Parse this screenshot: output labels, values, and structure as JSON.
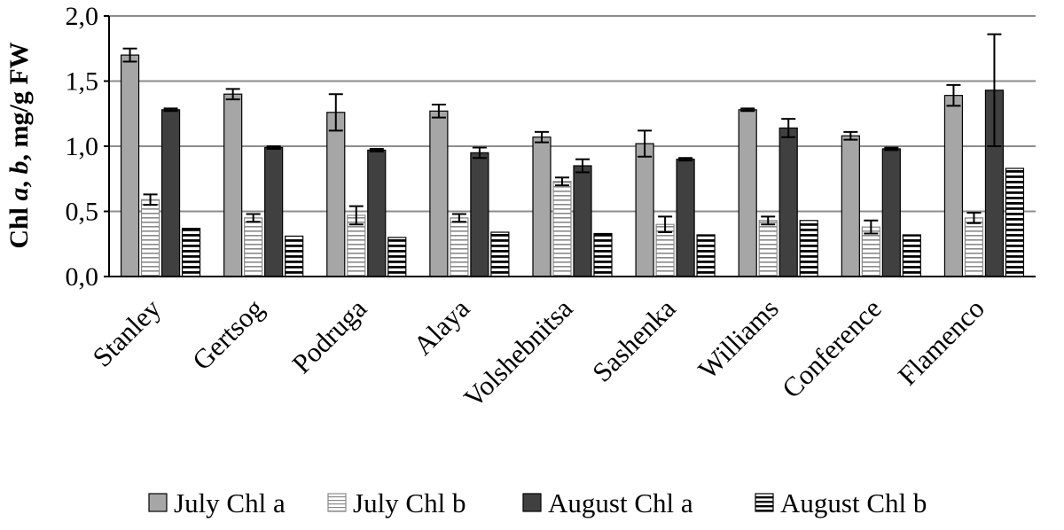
{
  "chart_data": {
    "type": "bar",
    "title": "",
    "xlabel": "",
    "ylabel": "Chl a, b, mg/g FW",
    "ylabel_parts": [
      "Chl ",
      "a",
      ", ",
      "b",
      ", mg/g FW"
    ],
    "ylim": [
      0,
      2.0
    ],
    "yticks": [
      "0,0",
      "0,5",
      "1,0",
      "1,5",
      "2,0"
    ],
    "ytick_values": [
      0,
      0.5,
      1.0,
      1.5,
      2.0
    ],
    "grid": true,
    "legend_position": "bottom",
    "categories": [
      "Stanley",
      "Gertsog",
      "Podruga",
      "Alaya",
      "Volshebnitsa",
      "Sashenka",
      "Williams",
      "Conference",
      "Flamenco"
    ],
    "series": [
      {
        "name": "July Chl a",
        "fill": "#a6a6a6",
        "pattern": "solid",
        "values": [
          1.7,
          1.4,
          1.26,
          1.27,
          1.07,
          1.02,
          1.28,
          1.08,
          1.39
        ],
        "errors": [
          0.05,
          0.04,
          0.14,
          0.05,
          0.04,
          0.1,
          0.01,
          0.03,
          0.08
        ]
      },
      {
        "name": "July Chl b",
        "fill": "#ffffff",
        "pattern": "thin-horizontal-lines",
        "values": [
          0.59,
          0.45,
          0.47,
          0.45,
          0.73,
          0.4,
          0.43,
          0.38,
          0.45
        ],
        "errors": [
          0.04,
          0.03,
          0.07,
          0.03,
          0.03,
          0.06,
          0.03,
          0.05,
          0.04
        ]
      },
      {
        "name": "August Chl a",
        "fill": "#404040",
        "pattern": "solid",
        "values": [
          1.28,
          0.99,
          0.97,
          0.95,
          0.85,
          0.9,
          1.14,
          0.98,
          1.43
        ],
        "errors": [
          0.01,
          0.01,
          0.01,
          0.04,
          0.05,
          0.01,
          0.07,
          0.01,
          0.43
        ]
      },
      {
        "name": "August Chl b",
        "fill": "#ffffff",
        "pattern": "thick-horizontal-lines",
        "values": [
          0.37,
          0.31,
          0.3,
          0.34,
          0.33,
          0.32,
          0.43,
          0.32,
          0.83
        ],
        "errors": [
          0,
          0,
          0,
          0,
          0,
          0,
          0,
          0,
          0
        ]
      }
    ]
  }
}
